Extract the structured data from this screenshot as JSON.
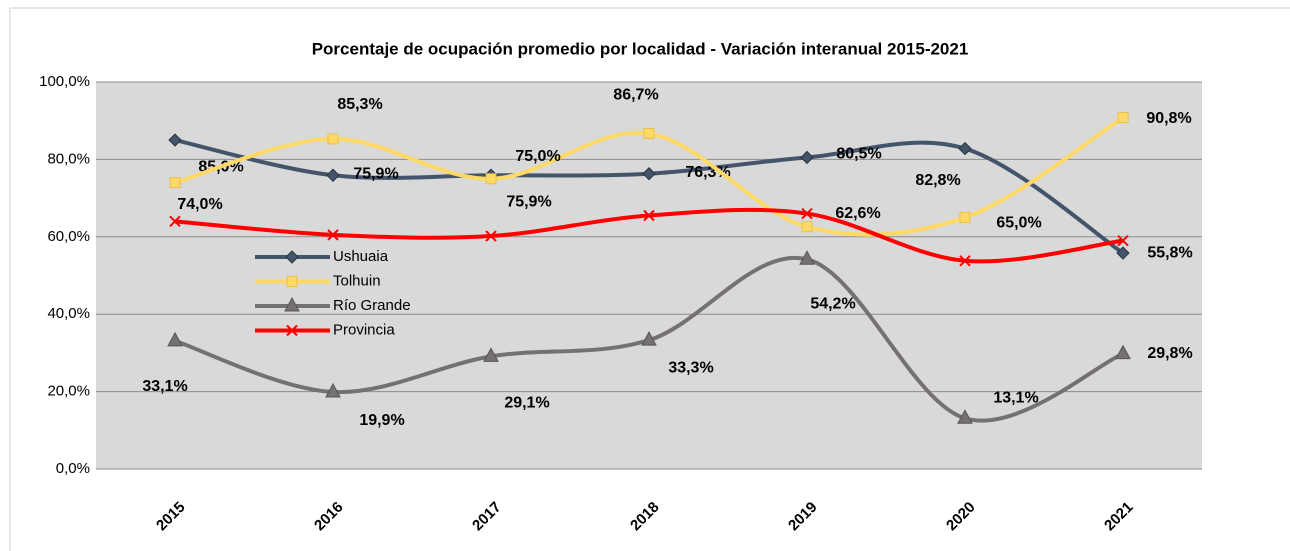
{
  "chart_data": {
    "type": "line",
    "title": "Porcentaje de ocupación promedio por localidad  - Variación interanual 2015-2021",
    "categories": [
      "2015",
      "2016",
      "2017",
      "2018",
      "2019",
      "2020",
      "2021"
    ],
    "ylim": [
      0,
      100
    ],
    "yticks": [
      {
        "value": 0,
        "label": "0,0%"
      },
      {
        "value": 20,
        "label": "20,0%"
      },
      {
        "value": 40,
        "label": "40,0%"
      },
      {
        "value": 60,
        "label": "60,0%"
      },
      {
        "value": 80,
        "label": "80,0%"
      },
      {
        "value": 100,
        "label": "100,0%"
      }
    ],
    "grid": true,
    "series": [
      {
        "name": "Ushuaia",
        "color": "#44546a",
        "marker": "diamond",
        "values": [
          85.0,
          75.9,
          75.9,
          76.3,
          80.5,
          82.8,
          55.8
        ],
        "value_labels": [
          "85,0%",
          "75,9%",
          "75,9%",
          "76,3%",
          "80,5%",
          "82,8%",
          "55,8%"
        ]
      },
      {
        "name": "Tolhuin",
        "color": "#ffd966",
        "marker": "square",
        "values": [
          74.0,
          85.3,
          75.0,
          86.7,
          62.6,
          65.0,
          90.8
        ],
        "value_labels": [
          "74,0%",
          "85,3%",
          "75,0%",
          "86,7%",
          "62,6%",
          "65,0%",
          "90,8%"
        ]
      },
      {
        "name": "Río Grande",
        "color": "#767171",
        "marker": "triangle",
        "values": [
          33.1,
          19.9,
          29.1,
          33.3,
          54.2,
          13.1,
          29.8
        ],
        "value_labels": [
          "33,1%",
          "19,9%",
          "29,1%",
          "33,3%",
          "54,2%",
          "13,1%",
          "29,8%"
        ]
      },
      {
        "name": "Provincia",
        "color": "#ff0000",
        "marker": "x",
        "values": [
          64,
          60.5,
          60.2,
          65.5,
          66,
          53.8,
          59
        ]
      }
    ]
  }
}
